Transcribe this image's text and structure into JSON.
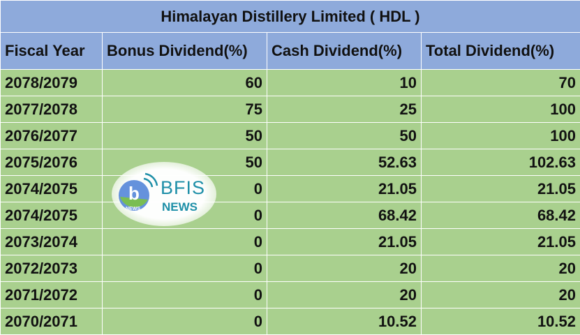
{
  "title": "Himalayan Distillery Limited ( HDL )",
  "columns": [
    "Fiscal Year",
    "Bonus Dividend(%)",
    "Cash Dividend(%)",
    "Total Dividend(%)"
  ],
  "rows": [
    {
      "year": "2078/2079",
      "bonus": "60",
      "cash": "10",
      "total": "70"
    },
    {
      "year": "2077/2078",
      "bonus": "75",
      "cash": "25",
      "total": "100"
    },
    {
      "year": "2076/2077",
      "bonus": "50",
      "cash": "50",
      "total": "100"
    },
    {
      "year": "2075/2076",
      "bonus": "50",
      "cash": "52.63",
      "total": "102.63"
    },
    {
      "year": "2074/2075",
      "bonus": "0",
      "cash": "21.05",
      "total": "21.05"
    },
    {
      "year": "2074/2075",
      "bonus": "0",
      "cash": "68.42",
      "total": "68.42"
    },
    {
      "year": "2073/2074",
      "bonus": "0",
      "cash": "21.05",
      "total": "21.05"
    },
    {
      "year": "2072/2073",
      "bonus": "0",
      "cash": "20",
      "total": "20"
    },
    {
      "year": "2071/2072",
      "bonus": "0",
      "cash": "20",
      "total": "20"
    },
    {
      "year": "2070/2071",
      "bonus": "0",
      "cash": "10.52",
      "total": "10.52"
    }
  ],
  "watermark": {
    "brand": "BFIS",
    "sub": "NEWS",
    "icon_text": "NEWS",
    "icon": "b-signal-logo-icon"
  },
  "colors": {
    "header_bg": "#8eaadb",
    "row_bg": "#a9d08e",
    "logo": "#1e8fa8"
  }
}
